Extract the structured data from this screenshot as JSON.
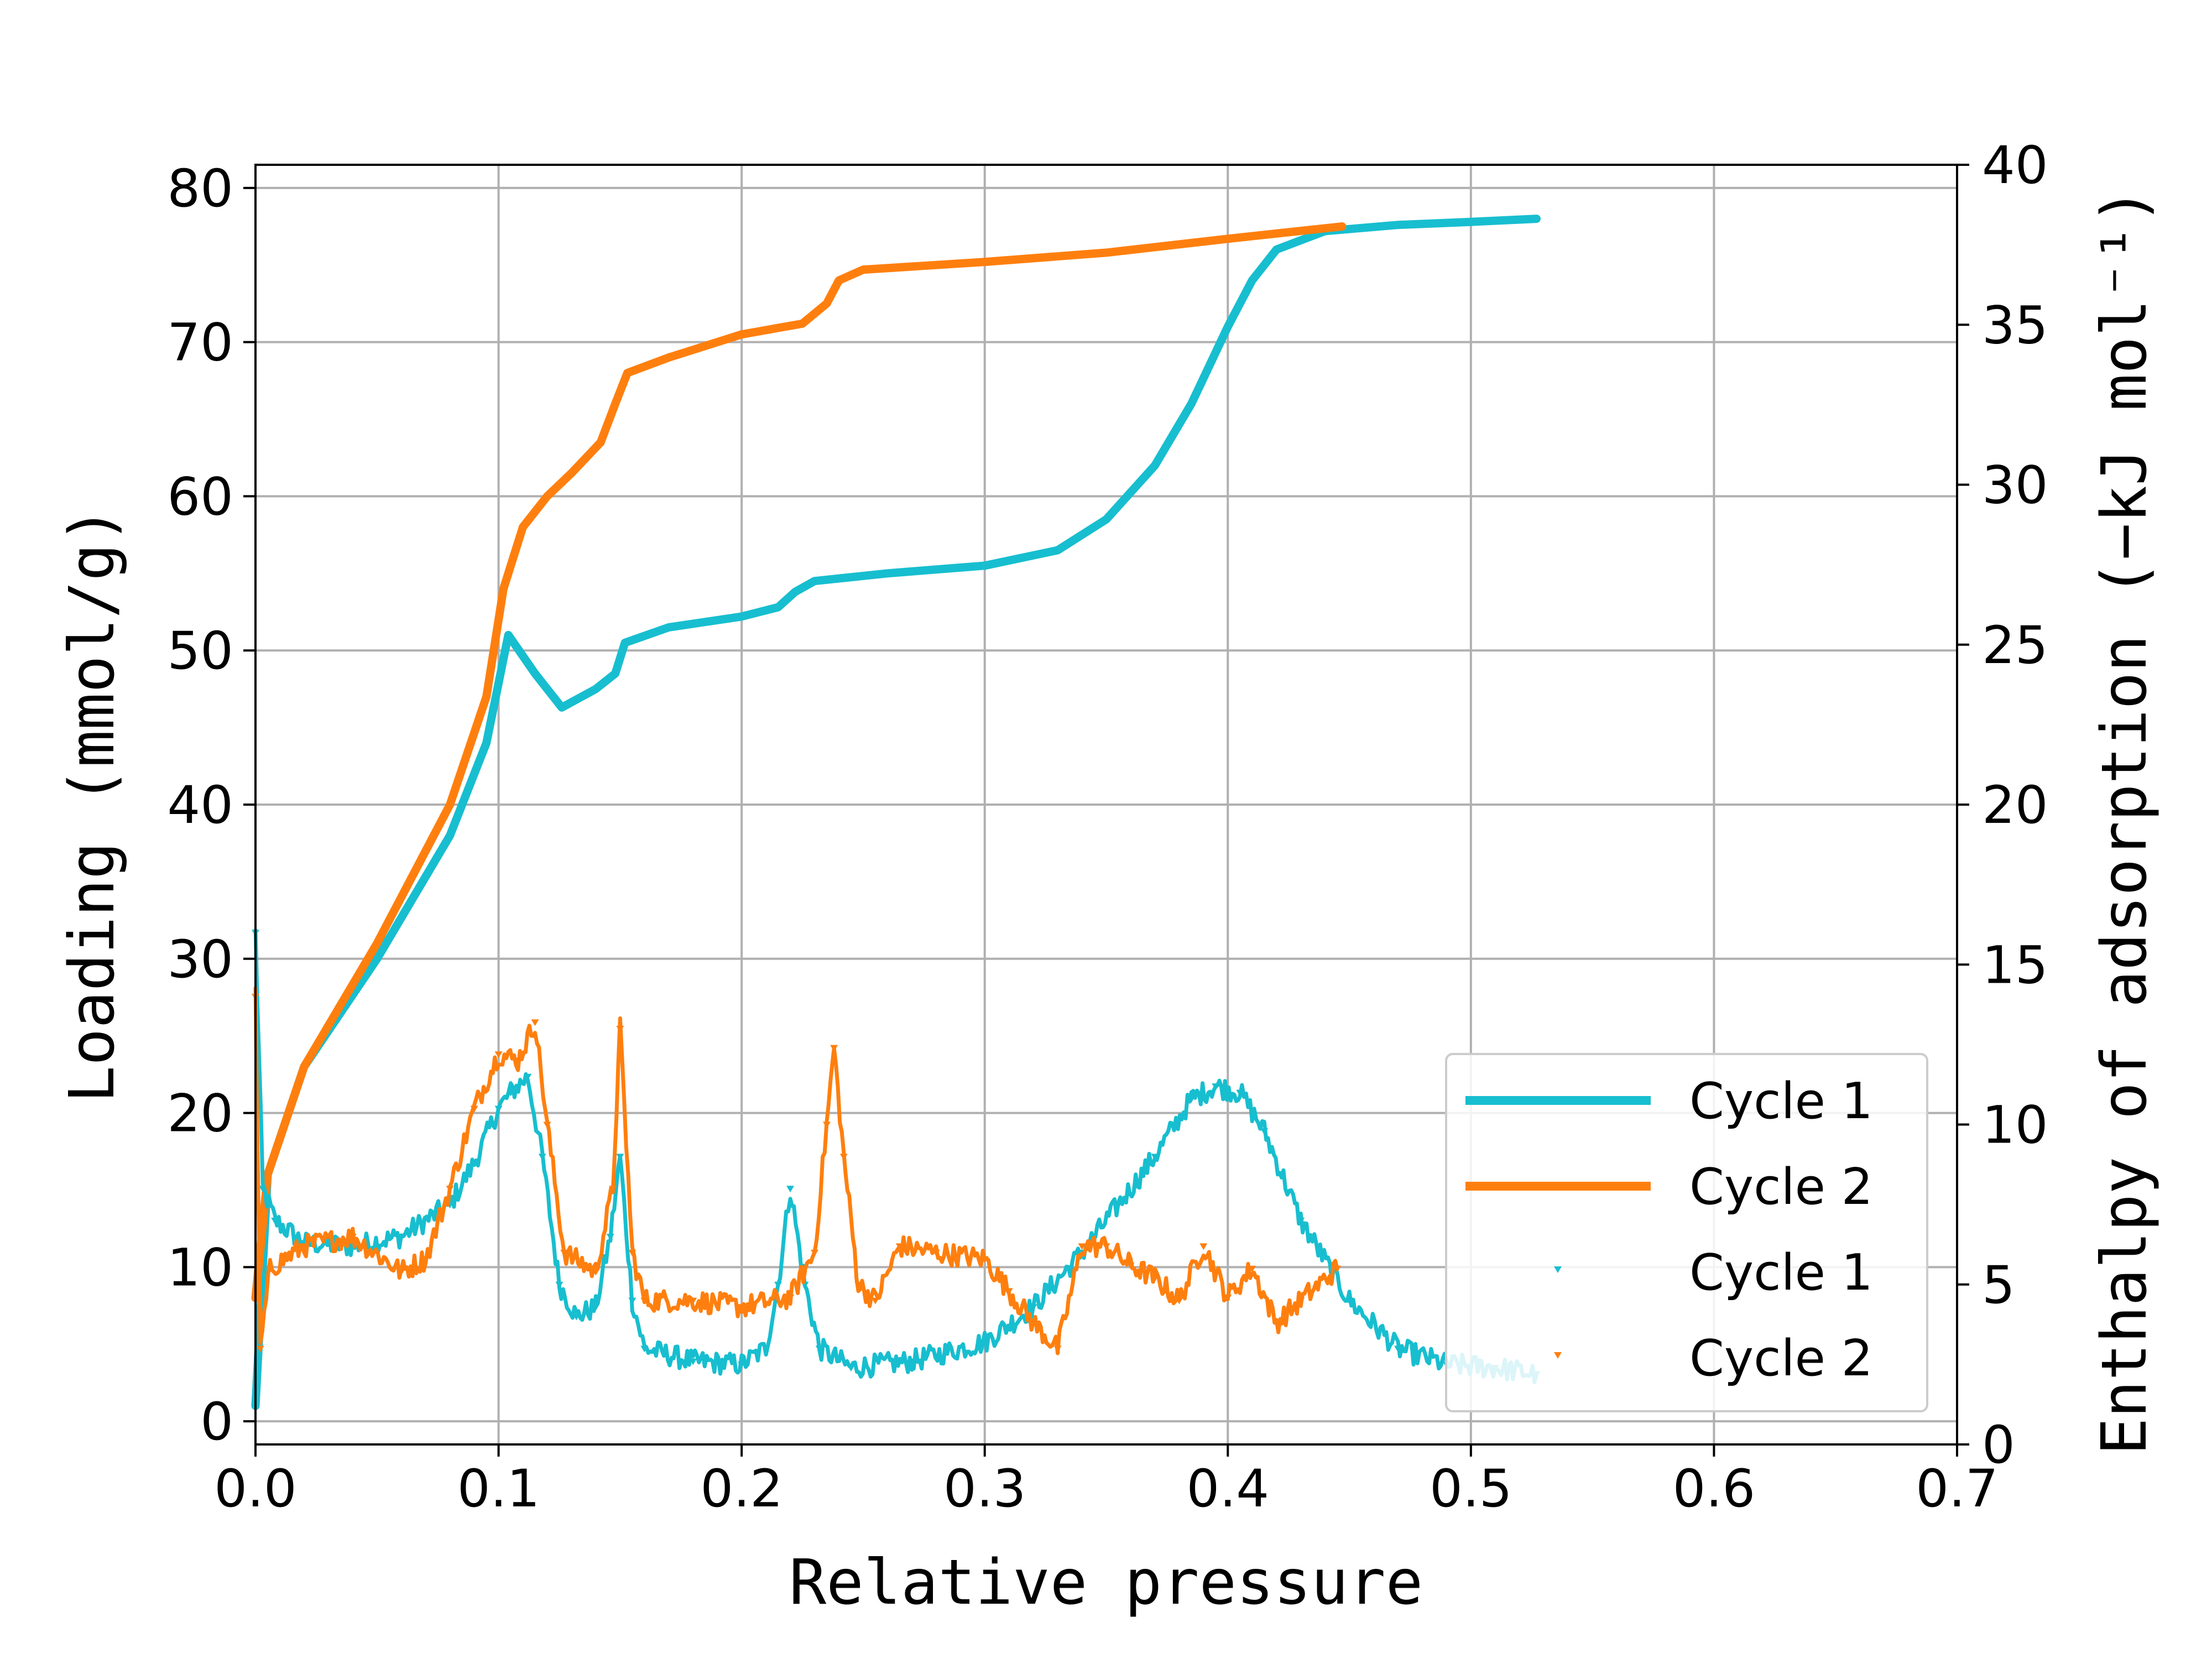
{
  "chart_data": {
    "type": "line",
    "xlabel": "Relative pressure",
    "ylabel": "Loading (mmol/g)",
    "y2label": "Enthalpy of adsorption (−kJ mol⁻¹)",
    "xlim": [
      0.0,
      0.7
    ],
    "ylim": [
      -1.5,
      81.5
    ],
    "y2lim": [
      0,
      40
    ],
    "xticks": [
      "0.0",
      "0.1",
      "0.2",
      "0.3",
      "0.4",
      "0.5",
      "0.6",
      "0.7"
    ],
    "yticks": [
      "0",
      "10",
      "20",
      "30",
      "40",
      "50",
      "60",
      "70",
      "80"
    ],
    "y2ticks": [
      "0",
      "5",
      "10",
      "15",
      "20",
      "25",
      "30",
      "35",
      "40"
    ],
    "grid": true,
    "legend_position": "lower-right",
    "legend": [
      "Cycle 1",
      "Cycle 2",
      "Cycle 1",
      "Cycle 2"
    ],
    "colors": {
      "cycle1": "#17becf",
      "cycle2": "#ff7f0e"
    },
    "series": [
      {
        "name": "Cycle 1",
        "axis": "left",
        "style": "line",
        "color": "#17becf",
        "points": [
          [
            0.0,
            1
          ],
          [
            0.005,
            16
          ],
          [
            0.02,
            23
          ],
          [
            0.05,
            30
          ],
          [
            0.08,
            38
          ],
          [
            0.095,
            44
          ],
          [
            0.104,
            51
          ],
          [
            0.115,
            48.5
          ],
          [
            0.126,
            46.3
          ],
          [
            0.14,
            47.5
          ],
          [
            0.148,
            48.5
          ],
          [
            0.152,
            50.5
          ],
          [
            0.17,
            51.5
          ],
          [
            0.2,
            52.2
          ],
          [
            0.215,
            52.8
          ],
          [
            0.222,
            53.8
          ],
          [
            0.23,
            54.5
          ],
          [
            0.26,
            55
          ],
          [
            0.3,
            55.5
          ],
          [
            0.33,
            56.5
          ],
          [
            0.35,
            58.5
          ],
          [
            0.37,
            62
          ],
          [
            0.385,
            66
          ],
          [
            0.4,
            71
          ],
          [
            0.41,
            74
          ],
          [
            0.42,
            76
          ],
          [
            0.44,
            77.2
          ],
          [
            0.47,
            77.6
          ],
          [
            0.5,
            77.8
          ],
          [
            0.527,
            78
          ]
        ]
      },
      {
        "name": "Cycle 2",
        "axis": "left",
        "style": "line",
        "color": "#ff7f0e",
        "points": [
          [
            0.0,
            8
          ],
          [
            0.005,
            16
          ],
          [
            0.02,
            23
          ],
          [
            0.05,
            31
          ],
          [
            0.08,
            40
          ],
          [
            0.095,
            47
          ],
          [
            0.102,
            54
          ],
          [
            0.11,
            58
          ],
          [
            0.12,
            60
          ],
          [
            0.13,
            61.5
          ],
          [
            0.142,
            63.5
          ],
          [
            0.148,
            66
          ],
          [
            0.153,
            68
          ],
          [
            0.17,
            69
          ],
          [
            0.2,
            70.5
          ],
          [
            0.225,
            71.2
          ],
          [
            0.235,
            72.5
          ],
          [
            0.24,
            74
          ],
          [
            0.25,
            74.7
          ],
          [
            0.3,
            75.2
          ],
          [
            0.35,
            75.8
          ],
          [
            0.4,
            76.7
          ],
          [
            0.447,
            77.5
          ]
        ]
      },
      {
        "name": "Cycle 1",
        "axis": "right",
        "style": "markers",
        "color": "#17becf",
        "points": [
          [
            0.0,
            16
          ],
          [
            0.003,
            8
          ],
          [
            0.008,
            7
          ],
          [
            0.02,
            6.3
          ],
          [
            0.04,
            6.2
          ],
          [
            0.06,
            6.5
          ],
          [
            0.08,
            7.5
          ],
          [
            0.09,
            8.8
          ],
          [
            0.1,
            10.5
          ],
          [
            0.105,
            11
          ],
          [
            0.112,
            11.5
          ],
          [
            0.118,
            9
          ],
          [
            0.125,
            5
          ],
          [
            0.132,
            4
          ],
          [
            0.14,
            4.3
          ],
          [
            0.146,
            6.5
          ],
          [
            0.15,
            9
          ],
          [
            0.155,
            4.5
          ],
          [
            0.16,
            3
          ],
          [
            0.18,
            2.6
          ],
          [
            0.2,
            2.5
          ],
          [
            0.21,
            3
          ],
          [
            0.215,
            5
          ],
          [
            0.22,
            8
          ],
          [
            0.226,
            5
          ],
          [
            0.232,
            3
          ],
          [
            0.245,
            2.4
          ],
          [
            0.27,
            2.6
          ],
          [
            0.3,
            3.2
          ],
          [
            0.32,
            4.3
          ],
          [
            0.34,
            6
          ],
          [
            0.355,
            7.5
          ],
          [
            0.37,
            9
          ],
          [
            0.385,
            10.8
          ],
          [
            0.395,
            11.2
          ],
          [
            0.405,
            11
          ],
          [
            0.415,
            9.8
          ],
          [
            0.43,
            7
          ],
          [
            0.45,
            4.5
          ],
          [
            0.47,
            3
          ],
          [
            0.49,
            2.5
          ],
          [
            0.51,
            2.4
          ],
          [
            0.527,
            2.2
          ]
        ]
      },
      {
        "name": "Cycle 2",
        "axis": "right",
        "style": "markers",
        "color": "#ff7f0e",
        "points": [
          [
            0.0,
            14
          ],
          [
            0.002,
            3
          ],
          [
            0.006,
            5.5
          ],
          [
            0.02,
            6.2
          ],
          [
            0.04,
            6.5
          ],
          [
            0.06,
            5.4
          ],
          [
            0.07,
            5.8
          ],
          [
            0.08,
            8
          ],
          [
            0.09,
            10.5
          ],
          [
            0.1,
            12.2
          ],
          [
            0.108,
            12
          ],
          [
            0.115,
            13.2
          ],
          [
            0.12,
            10
          ],
          [
            0.127,
            6
          ],
          [
            0.14,
            5.4
          ],
          [
            0.147,
            8
          ],
          [
            0.15,
            13
          ],
          [
            0.155,
            6
          ],
          [
            0.16,
            4.5
          ],
          [
            0.18,
            4.5
          ],
          [
            0.2,
            4.3
          ],
          [
            0.22,
            4.6
          ],
          [
            0.23,
            6
          ],
          [
            0.235,
            10
          ],
          [
            0.238,
            12.4
          ],
          [
            0.242,
            9
          ],
          [
            0.248,
            5
          ],
          [
            0.255,
            4.5
          ],
          [
            0.265,
            6.2
          ],
          [
            0.28,
            6
          ],
          [
            0.3,
            5.8
          ],
          [
            0.31,
            4.8
          ],
          [
            0.32,
            3.8
          ],
          [
            0.33,
            3
          ],
          [
            0.34,
            6.2
          ],
          [
            0.35,
            6.2
          ],
          [
            0.36,
            5.6
          ],
          [
            0.37,
            5.2
          ],
          [
            0.38,
            4.5
          ],
          [
            0.39,
            6.2
          ],
          [
            0.4,
            4.6
          ],
          [
            0.41,
            5.5
          ],
          [
            0.42,
            3.8
          ],
          [
            0.43,
            4.5
          ],
          [
            0.445,
            5.5
          ]
        ]
      }
    ]
  }
}
